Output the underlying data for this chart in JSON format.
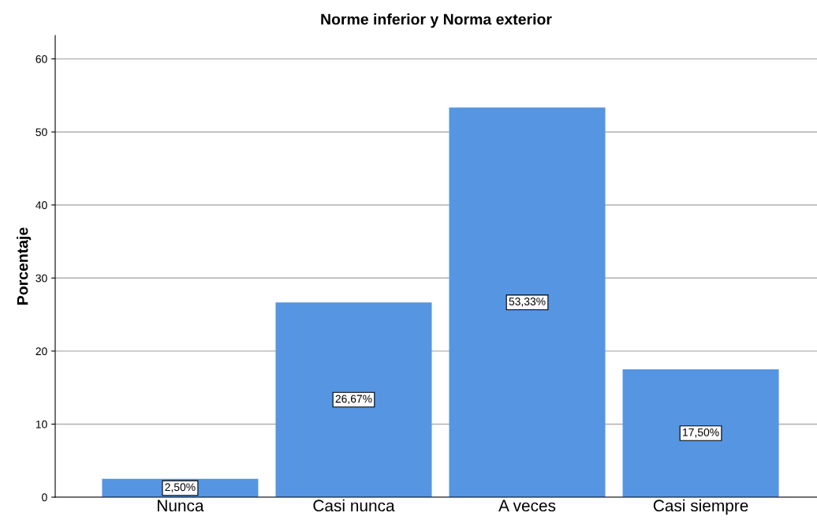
{
  "chart_data": {
    "type": "bar",
    "title": "Norme inferior y Norma exterior",
    "ylabel": "Porcentaje",
    "categories": [
      "Nunca",
      "Casi nunca",
      "A veces",
      "Casi siempre"
    ],
    "values": [
      2.5,
      26.67,
      53.33,
      17.5
    ],
    "value_labels": [
      "2,50%",
      "26,67%",
      "53,33%",
      "17,50%"
    ],
    "color": "#5595e2",
    "ylim": [
      0,
      63.2
    ],
    "yticks": [
      0,
      10,
      20,
      30,
      40,
      50,
      60
    ],
    "grid": "y"
  }
}
